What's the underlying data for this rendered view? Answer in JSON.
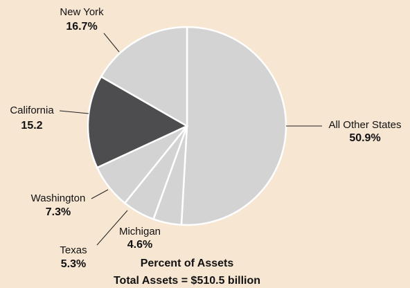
{
  "chart_data": {
    "type": "pie",
    "title": "Percent of Assets",
    "subtitle": "Total Assets = $510.5 billion",
    "categories": [
      "All Other States",
      "Michigan",
      "Texas",
      "Washington",
      "California",
      "New York"
    ],
    "values": [
      50.9,
      4.6,
      5.3,
      7.3,
      15.2,
      16.7
    ],
    "value_labels": [
      "50.9%",
      "4.6%",
      "5.3%",
      "7.3%",
      "15.2",
      "16.7%"
    ],
    "colors": [
      "#d3d3d3",
      "#d3d3d3",
      "#d3d3d3",
      "#d3d3d3",
      "#4d4d4f",
      "#d3d3d3"
    ]
  }
}
